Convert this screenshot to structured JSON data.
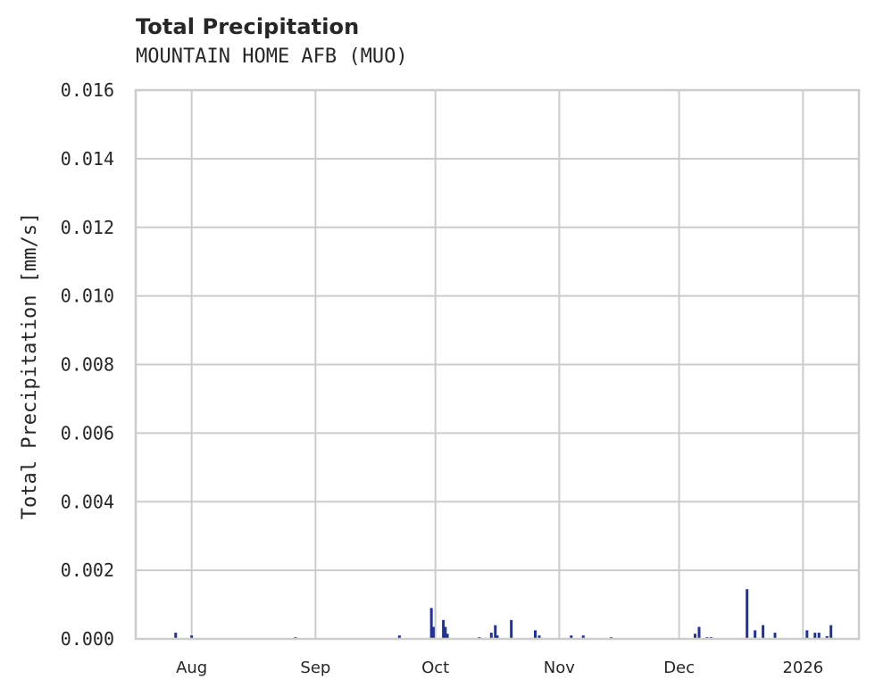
{
  "title": "Total Precipitation",
  "subtitle": "MOUNTAIN HOME AFB (MUO)",
  "chart_data": {
    "type": "bar",
    "title": "Total Precipitation",
    "subtitle": "MOUNTAIN HOME AFB (MUO)",
    "xlabel": "",
    "ylabel": "Total Precipitation [mm/s]",
    "ylim": [
      0.0,
      0.016
    ],
    "yticks": [
      "0.000",
      "0.002",
      "0.004",
      "0.006",
      "0.008",
      "0.010",
      "0.012",
      "0.014",
      "0.016"
    ],
    "xticks": [
      "Aug",
      "Sep",
      "Oct",
      "Nov",
      "Dec",
      "2026"
    ],
    "xtick_dates": [
      "2025-08-01",
      "2025-09-01",
      "2025-10-01",
      "2025-11-01",
      "2025-12-01",
      "2026-01-01"
    ],
    "xlim": [
      "2025-07-18",
      "2026-01-15"
    ],
    "grid": true,
    "color": "#23338f",
    "series": [
      {
        "name": "Total Precipitation",
        "points": [
          {
            "x": "2025-07-28",
            "y": 0.00018
          },
          {
            "x": "2025-08-01",
            "y": 0.0001
          },
          {
            "x": "2025-08-27",
            "y": 5e-05
          },
          {
            "x": "2025-09-22",
            "y": 0.0001
          },
          {
            "x": "2025-09-30",
            "y": 0.0009
          },
          {
            "x": "2025-09-30T12:00",
            "y": 0.00035
          },
          {
            "x": "2025-10-03",
            "y": 0.00055
          },
          {
            "x": "2025-10-03T12:00",
            "y": 0.00035
          },
          {
            "x": "2025-10-04",
            "y": 0.00015
          },
          {
            "x": "2025-10-12",
            "y": 5e-05
          },
          {
            "x": "2025-10-15",
            "y": 0.00018
          },
          {
            "x": "2025-10-16",
            "y": 0.0004
          },
          {
            "x": "2025-10-16T12:00",
            "y": 0.0001
          },
          {
            "x": "2025-10-20",
            "y": 0.00055
          },
          {
            "x": "2025-10-26",
            "y": 0.00025
          },
          {
            "x": "2025-10-27",
            "y": 0.0001
          },
          {
            "x": "2025-11-04",
            "y": 0.0001
          },
          {
            "x": "2025-11-07",
            "y": 0.0001
          },
          {
            "x": "2025-11-14",
            "y": 5e-05
          },
          {
            "x": "2025-12-05",
            "y": 0.00015
          },
          {
            "x": "2025-12-06",
            "y": 0.00035
          },
          {
            "x": "2025-12-08",
            "y": 5e-05
          },
          {
            "x": "2025-12-09",
            "y": 5e-05
          },
          {
            "x": "2025-12-18",
            "y": 0.00145
          },
          {
            "x": "2025-12-20",
            "y": 0.00025
          },
          {
            "x": "2025-12-22",
            "y": 0.0004
          },
          {
            "x": "2025-12-25",
            "y": 0.00018
          },
          {
            "x": "2026-01-02",
            "y": 0.00025
          },
          {
            "x": "2026-01-04",
            "y": 0.00018
          },
          {
            "x": "2026-01-05",
            "y": 0.00018
          },
          {
            "x": "2026-01-07",
            "y": 8e-05
          },
          {
            "x": "2026-01-08",
            "y": 0.0004
          }
        ]
      }
    ]
  }
}
